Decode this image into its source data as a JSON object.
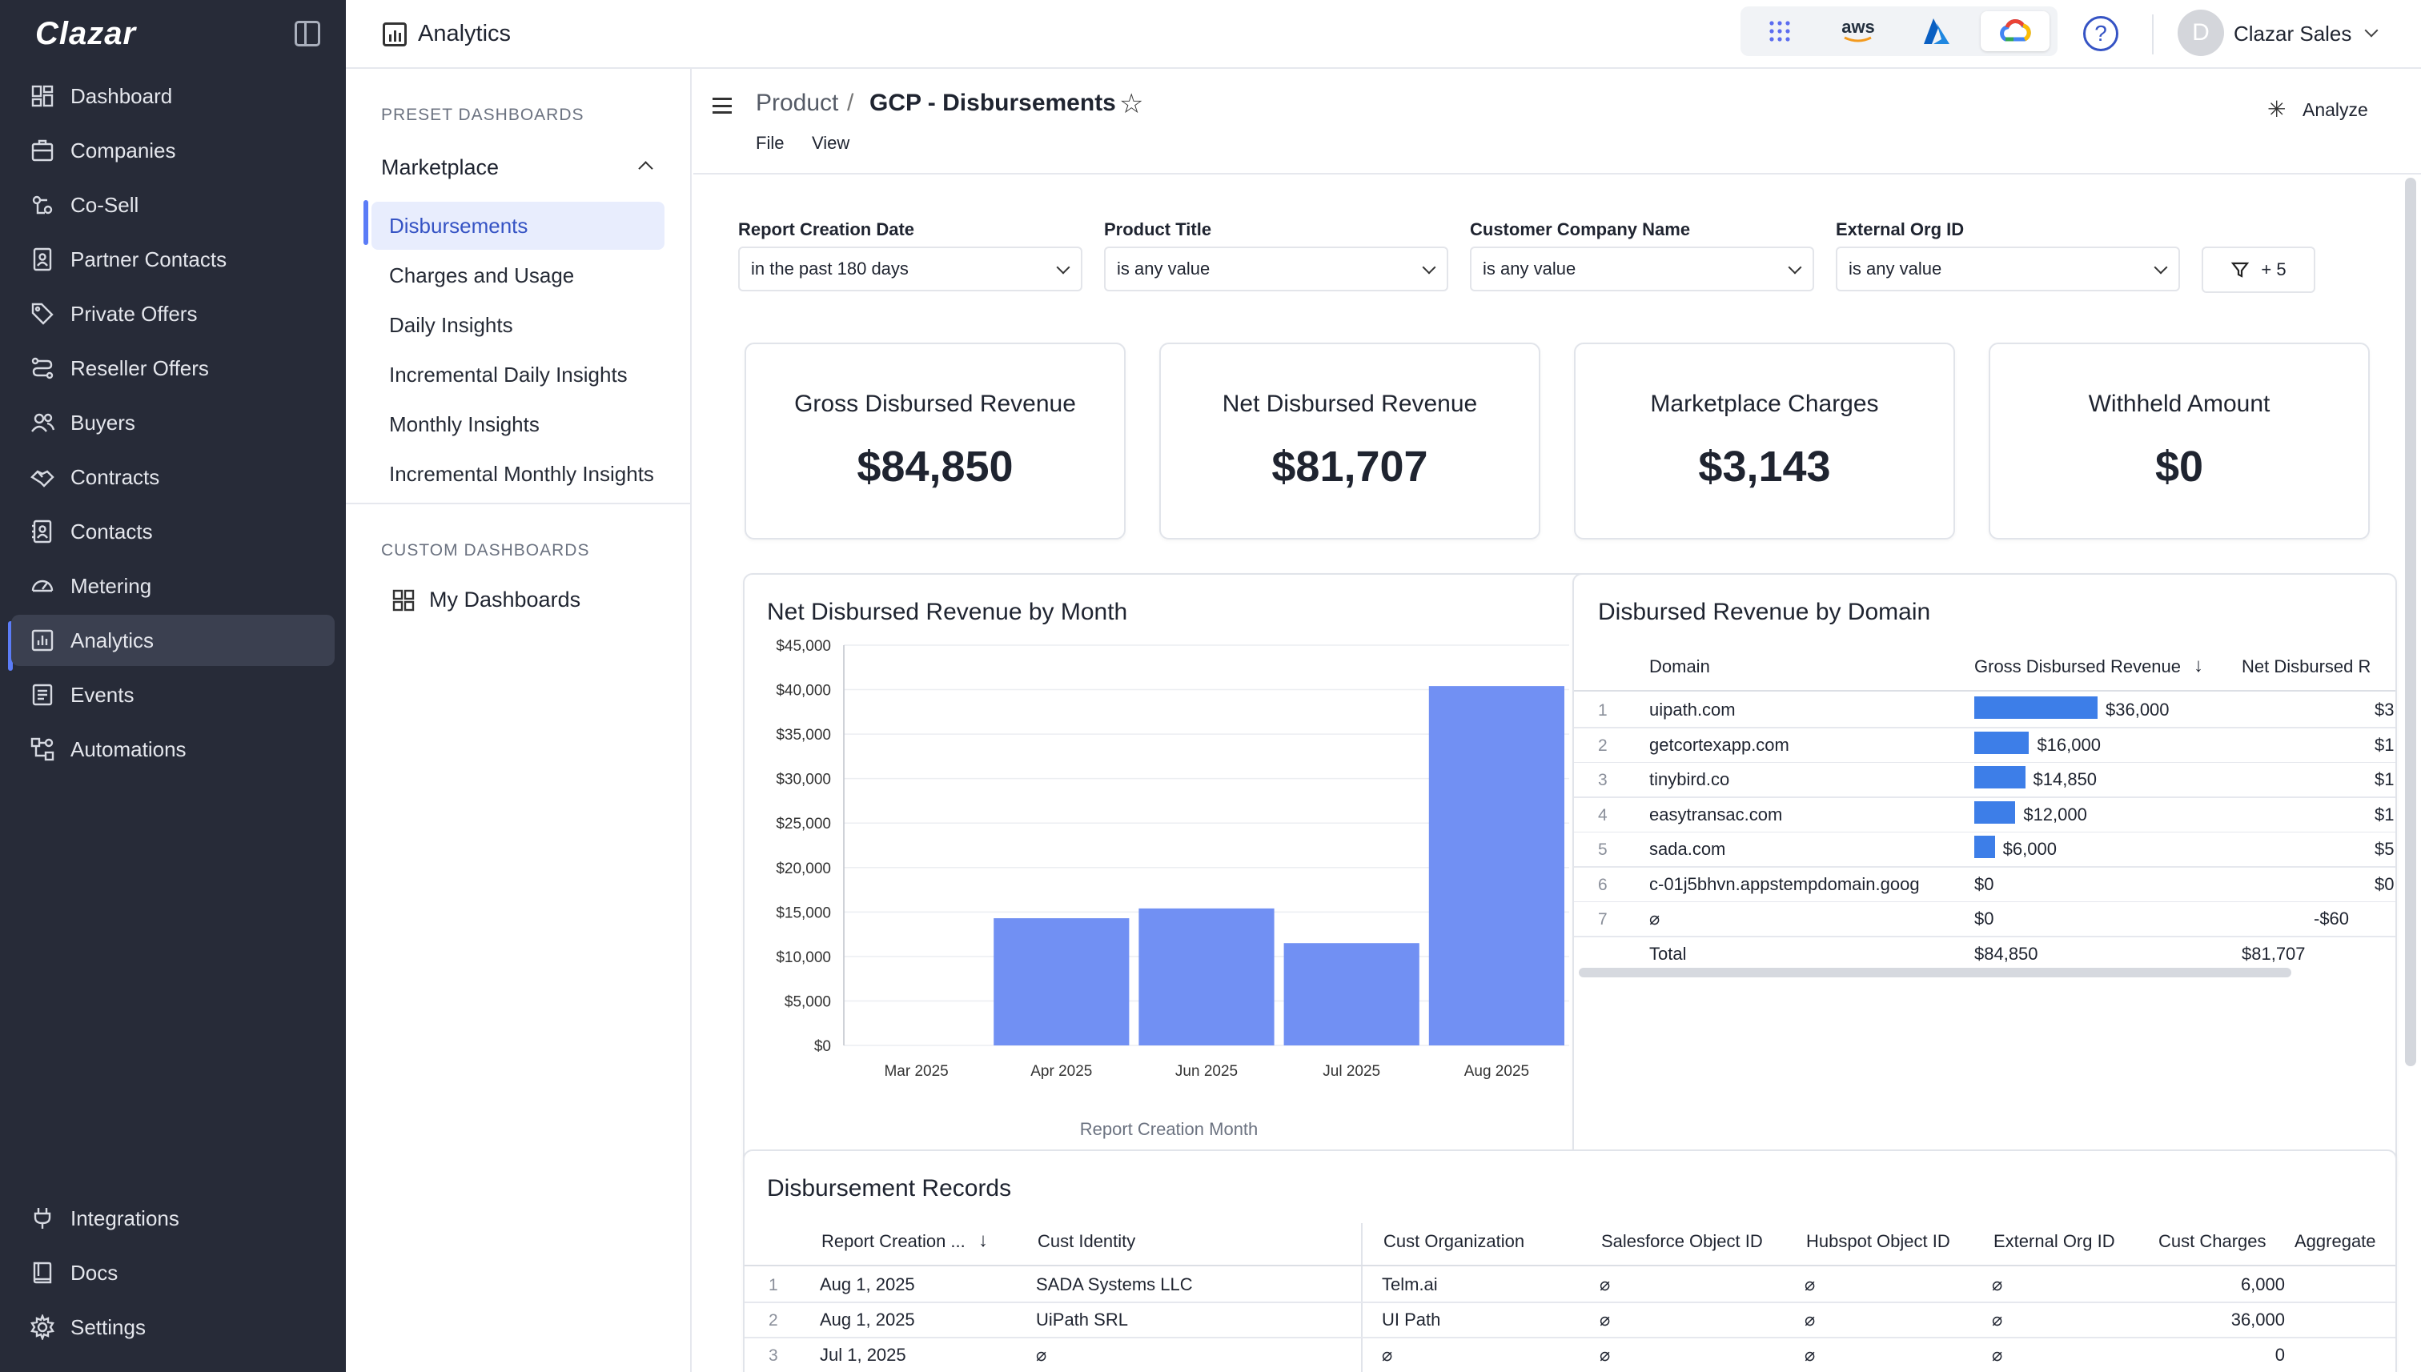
{
  "app": {
    "logo": "Clazar"
  },
  "sidebar": {
    "items": [
      {
        "label": "Dashboard",
        "icon": "dashboard-icon"
      },
      {
        "label": "Companies",
        "icon": "building-icon"
      },
      {
        "label": "Co-Sell",
        "icon": "co-sell-icon"
      },
      {
        "label": "Partner Contacts",
        "icon": "contact-card-icon"
      },
      {
        "label": "Private Offers",
        "icon": "tag-icon"
      },
      {
        "label": "Reseller Offers",
        "icon": "route-icon"
      },
      {
        "label": "Buyers",
        "icon": "users-icon"
      },
      {
        "label": "Contracts",
        "icon": "handshake-icon"
      },
      {
        "label": "Contacts",
        "icon": "contact-book-icon"
      },
      {
        "label": "Metering",
        "icon": "gauge-icon"
      },
      {
        "label": "Analytics",
        "icon": "chart-icon"
      },
      {
        "label": "Events",
        "icon": "events-icon"
      },
      {
        "label": "Automations",
        "icon": "automation-icon"
      }
    ],
    "bottom": [
      {
        "label": "Integrations",
        "icon": "plug-icon"
      },
      {
        "label": "Docs",
        "icon": "book-icon"
      },
      {
        "label": "Settings",
        "icon": "gear-icon"
      }
    ]
  },
  "header": {
    "title": "Analytics",
    "user_initial": "D",
    "user_name": "Clazar Sales",
    "aws_label": "aws"
  },
  "subnav": {
    "preset_label": "PRESET DASHBOARDS",
    "group": "Marketplace",
    "items": [
      "Disbursements",
      "Charges and Usage",
      "Daily Insights",
      "Incremental Daily Insights",
      "Monthly Insights",
      "Incremental Monthly Insights"
    ],
    "custom_label": "CUSTOM DASHBOARDS",
    "my_dashboards": "My Dashboards"
  },
  "page": {
    "breadcrumb_parent": "Product",
    "breadcrumb_sep": "/",
    "title": "GCP - Disbursements",
    "menu_file": "File",
    "menu_view": "View",
    "analyze": "Analyze"
  },
  "filters": [
    {
      "label": "Report Creation Date",
      "value": "in the past 180 days"
    },
    {
      "label": "Product Title",
      "value": "is any value"
    },
    {
      "label": "Customer Company Name",
      "value": "is any value"
    },
    {
      "label": "External Org ID",
      "value": "is any value"
    }
  ],
  "more_filters": "+ 5",
  "kpis": [
    {
      "title": "Gross Disbursed Revenue",
      "value": "$84,850"
    },
    {
      "title": "Net Disbursed Revenue",
      "value": "$81,707"
    },
    {
      "title": "Marketplace Charges",
      "value": "$3,143"
    },
    {
      "title": "Withheld Amount",
      "value": "$0"
    }
  ],
  "chart_data": {
    "type": "bar",
    "title": "Net Disbursed Revenue by Month",
    "xlabel": "Report Creation Month",
    "ylabel": "",
    "categories": [
      "Mar 2025",
      "Apr 2025",
      "Jun 2025",
      "Jul 2025",
      "Aug 2025"
    ],
    "values": [
      0,
      14300,
      15400,
      11500,
      40400
    ],
    "ylim": [
      0,
      45000
    ],
    "yticks": [
      "$0",
      "$5,000",
      "$10,000",
      "$15,000",
      "$20,000",
      "$25,000",
      "$30,000",
      "$35,000",
      "$40,000",
      "$45,000"
    ],
    "color": "#7190f3",
    "grid": true
  },
  "domain_table": {
    "title": "Disbursed Revenue by Domain",
    "headers": [
      "Domain",
      "Gross Disbursed Revenue",
      "Net Disbursed R"
    ],
    "rows": [
      {
        "n": "1",
        "domain": "uipath.com",
        "gross": "$36,000",
        "gross_val": 36000,
        "net": "$3"
      },
      {
        "n": "2",
        "domain": "getcortexapp.com",
        "gross": "$16,000",
        "gross_val": 16000,
        "net": "$1"
      },
      {
        "n": "3",
        "domain": "tinybird.co",
        "gross": "$14,850",
        "gross_val": 14850,
        "net": "$1"
      },
      {
        "n": "4",
        "domain": "easytransac.com",
        "gross": "$12,000",
        "gross_val": 12000,
        "net": "$1"
      },
      {
        "n": "5",
        "domain": "sada.com",
        "gross": "$6,000",
        "gross_val": 6000,
        "net": "$5"
      },
      {
        "n": "6",
        "domain": "c-01j5bhvn.appstempdomain.goog",
        "gross": "$0",
        "gross_val": 0,
        "net": "$0"
      },
      {
        "n": "7",
        "domain": "⌀",
        "gross": "$0",
        "gross_val": 0,
        "net": "-$60"
      }
    ],
    "total": {
      "label": "Total",
      "gross": "$84,850",
      "net": "$81,707"
    }
  },
  "records": {
    "title": "Disbursement Records",
    "headers": [
      "Report Creation ...",
      "Cust Identity",
      "Cust Organization",
      "Salesforce Object ID",
      "Hubspot Object ID",
      "External Org ID",
      "Cust Charges",
      "Aggregate"
    ],
    "rows": [
      {
        "n": "1",
        "date": "Aug 1, 2025",
        "identity": "SADA Systems LLC",
        "org": "Telm.ai",
        "sf": "⌀",
        "hs": "⌀",
        "ext": "⌀",
        "charges": "6,000"
      },
      {
        "n": "2",
        "date": "Aug 1, 2025",
        "identity": "UiPath SRL",
        "org": "UI Path",
        "sf": "⌀",
        "hs": "⌀",
        "ext": "⌀",
        "charges": "36,000"
      },
      {
        "n": "3",
        "date": "Jul 1, 2025",
        "identity": "⌀",
        "org": "⌀",
        "sf": "⌀",
        "hs": "⌀",
        "ext": "⌀",
        "charges": "0"
      }
    ]
  }
}
